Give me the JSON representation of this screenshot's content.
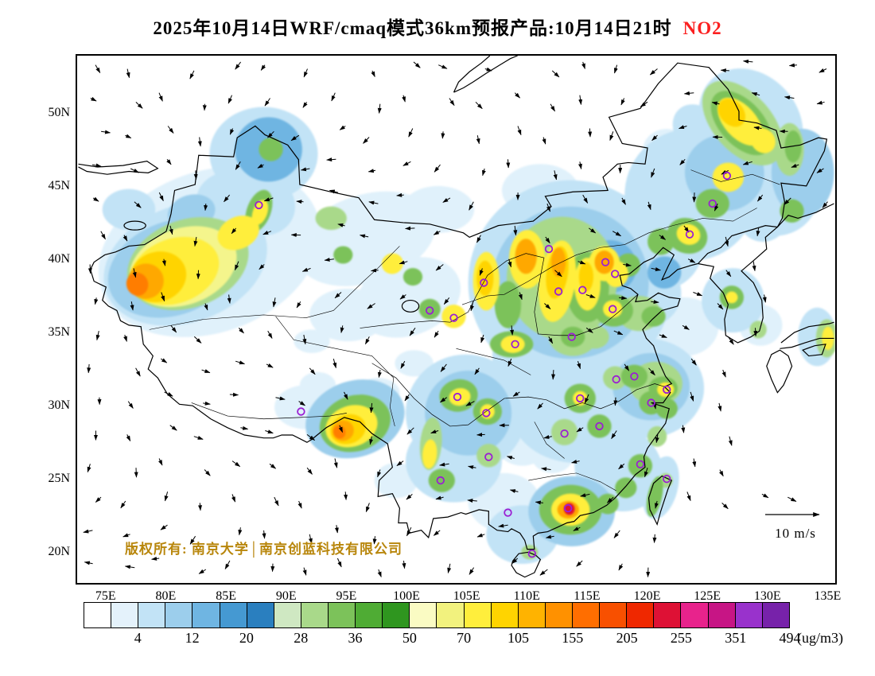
{
  "title": {
    "prefix": "2025年10月14日WRF/cmaq模式36km预报产品:10月14日21时",
    "species": "NO2",
    "species_color": "#FB2020"
  },
  "axes": {
    "lat_ticks": [
      [
        "50N",
        50
      ],
      [
        "45N",
        45
      ],
      [
        "40N",
        40
      ],
      [
        "35N",
        35
      ],
      [
        "30N",
        30
      ],
      [
        "25N",
        25
      ],
      [
        "20N",
        20
      ]
    ],
    "lon_ticks": [
      [
        "75E",
        75
      ],
      [
        "80E",
        80
      ],
      [
        "85E",
        85
      ],
      [
        "90E",
        90
      ],
      [
        "95E",
        95
      ],
      [
        "100E",
        100
      ],
      [
        "105E",
        105
      ],
      [
        "110E",
        110
      ],
      [
        "115E",
        115
      ],
      [
        "120E",
        120
      ],
      [
        "125E",
        125
      ],
      [
        "130E",
        130
      ],
      [
        "135E",
        135
      ]
    ]
  },
  "map": {
    "copyright": "版权所有: 南京大学│南京创蓝科技有限公司",
    "wind_scale": "10 m/s",
    "marker_color": "#9B1FD3",
    "cities": [
      [
        87.6,
        43.8
      ],
      [
        91.1,
        29.7
      ],
      [
        101.8,
        36.6
      ],
      [
        103.8,
        36.1
      ],
      [
        106.3,
        38.5
      ],
      [
        111.7,
        40.8
      ],
      [
        112.5,
        37.9
      ],
      [
        114.5,
        38.0
      ],
      [
        116.4,
        39.9
      ],
      [
        117.2,
        39.1
      ],
      [
        117.0,
        36.7
      ],
      [
        113.6,
        34.8
      ],
      [
        108.9,
        34.3
      ],
      [
        104.1,
        30.7
      ],
      [
        106.5,
        29.6
      ],
      [
        114.3,
        30.6
      ],
      [
        117.3,
        31.9
      ],
      [
        118.8,
        32.1
      ],
      [
        121.5,
        31.2
      ],
      [
        120.2,
        30.3
      ],
      [
        115.9,
        28.7
      ],
      [
        113.0,
        28.2
      ],
      [
        106.7,
        26.6
      ],
      [
        102.7,
        25.0
      ],
      [
        108.3,
        22.8
      ],
      [
        113.3,
        23.1
      ],
      [
        119.3,
        26.1
      ],
      [
        121.5,
        25.1
      ],
      [
        110.3,
        20.0
      ],
      [
        123.4,
        41.8
      ],
      [
        125.3,
        43.9
      ],
      [
        126.5,
        45.8
      ]
    ],
    "field_blobs": [
      [
        96.5,
        41.5,
        6.0,
        3.0,
        -18,
        "#E0F1FB"
      ],
      [
        100.0,
        37.5,
        4.5,
        2.6,
        -20,
        "#E0F1FB"
      ],
      [
        95.0,
        36.3,
        3.2,
        1.8,
        0,
        "#E0F1FB"
      ],
      [
        123.0,
        35.5,
        2.8,
        2.0,
        0,
        "#E0F1FB"
      ],
      [
        102.5,
        43.5,
        3.0,
        1.6,
        0,
        "#E0F1FB"
      ],
      [
        111.0,
        44.8,
        3.2,
        1.8,
        0,
        "#E0F1FB"
      ],
      [
        117.0,
        43.0,
        2.6,
        1.6,
        0,
        "#E0F1FB"
      ],
      [
        91.5,
        30.0,
        2.6,
        1.5,
        0,
        "#E0F1FB"
      ],
      [
        108.0,
        23.5,
        3.0,
        2.0,
        0,
        "#E0F1FB"
      ],
      [
        129.3,
        35.6,
        1.8,
        1.4,
        0,
        "#E0F1FB"
      ],
      [
        92.5,
        31.5,
        1.5,
        0.9,
        0,
        "#E0F1FB"
      ],
      [
        97.5,
        31.0,
        1.8,
        1.0,
        0,
        "#E0F1FB"
      ],
      [
        100.5,
        33.0,
        1.6,
        0.9,
        0,
        "#E0F1FB"
      ],
      [
        109.5,
        27.5,
        2.2,
        1.5,
        0,
        "#E0F1FB"
      ],
      [
        116.0,
        26.5,
        2.0,
        1.5,
        0,
        "#E0F1FB"
      ],
      [
        112.0,
        26.8,
        1.8,
        1.3,
        0,
        "#E0F1FB"
      ],
      [
        99.0,
        25.0,
        1.8,
        1.2,
        0,
        "#E0F1FB"
      ],
      [
        92.0,
        34.5,
        1.5,
        0.8,
        0,
        "#E0F1FB"
      ],
      [
        121.5,
        47.5,
        2.0,
        1.5,
        0,
        "#E0F1FB"
      ],
      [
        83.5,
        40.6,
        9.5,
        5.5,
        -20,
        "#E0F1FB"
      ],
      [
        81.5,
        39.8,
        7.0,
        4.0,
        -20,
        "#C2E3F6"
      ],
      [
        88.0,
        47.3,
        4.5,
        3.2,
        0,
        "#C2E3F6"
      ],
      [
        87.5,
        44.0,
        3.2,
        2.2,
        25,
        "#C2E3F6"
      ],
      [
        113.5,
        38.5,
        8.5,
        7.0,
        0,
        "#C2E3F6"
      ],
      [
        120.5,
        41.0,
        4.0,
        3.0,
        20,
        "#C2E3F6"
      ],
      [
        123.5,
        44.5,
        5.5,
        4.5,
        15,
        "#C2E3F6"
      ],
      [
        125.5,
        45.5,
        5.0,
        4.0,
        10,
        "#C2E3F6"
      ],
      [
        128.5,
        49.5,
        4.8,
        3.2,
        48,
        "#C2E3F6"
      ],
      [
        130.5,
        44.5,
        3.6,
        2.8,
        0,
        "#C2E3F6"
      ],
      [
        119.5,
        37.8,
        3.2,
        2.4,
        0,
        "#C2E3F6"
      ],
      [
        112.5,
        33.5,
        5.5,
        4.0,
        0,
        "#C2E3F6"
      ],
      [
        114.0,
        29.8,
        5.5,
        3.6,
        0,
        "#C2E3F6"
      ],
      [
        119.8,
        31.3,
        4.8,
        3.4,
        0,
        "#C2E3F6"
      ],
      [
        117.5,
        25.8,
        3.8,
        2.8,
        35,
        "#C2E3F6"
      ],
      [
        104.8,
        29.6,
        5.0,
        4.0,
        0,
        "#C2E3F6"
      ],
      [
        103.8,
        26.3,
        4.0,
        2.8,
        0,
        "#C2E3F6"
      ],
      [
        109.5,
        21.3,
        3.0,
        2.0,
        0,
        "#C2E3F6"
      ],
      [
        127.0,
        37.3,
        2.6,
        2.2,
        0,
        "#C2E3F6"
      ],
      [
        85.0,
        44.5,
        2.6,
        1.6,
        -15,
        "#C2E3F6"
      ],
      [
        76.8,
        43.5,
        2.2,
        1.4,
        0,
        "#C2E3F6"
      ],
      [
        134.0,
        34.8,
        1.6,
        2.0,
        0,
        "#C2E3F6"
      ],
      [
        121.0,
        24.5,
        1.4,
        2.2,
        15,
        "#C2E3F6"
      ],
      [
        107.5,
        31.8,
        2.0,
        1.4,
        0,
        "#C2E3F6"
      ],
      [
        110.5,
        30.5,
        1.8,
        1.2,
        0,
        "#C2E3F6"
      ],
      [
        124.0,
        49.0,
        2.2,
        1.5,
        48,
        "#C2E3F6"
      ],
      [
        129.5,
        42.5,
        1.8,
        1.2,
        0,
        "#C2E3F6"
      ],
      [
        80.5,
        39.5,
        5.6,
        3.2,
        -20,
        "#9CCEEC"
      ],
      [
        88.4,
        47.6,
        2.8,
        2.2,
        0,
        "#6FB5E2"
      ],
      [
        113.5,
        38.5,
        6.5,
        5.2,
        0,
        "#9CCEEC"
      ],
      [
        126.3,
        46.0,
        3.3,
        2.6,
        10,
        "#9CCEEC"
      ],
      [
        132.8,
        46.0,
        2.6,
        3.0,
        0,
        "#9CCEEC"
      ],
      [
        120.2,
        31.4,
        3.2,
        2.3,
        0,
        "#9CCEEC"
      ],
      [
        113.6,
        22.9,
        3.6,
        2.4,
        0,
        "#9CCEEC"
      ],
      [
        105.0,
        29.6,
        3.6,
        2.9,
        0,
        "#9CCEEC"
      ],
      [
        95.6,
        29.2,
        4.2,
        2.6,
        -18,
        "#9CCEEC"
      ],
      [
        82.0,
        43.3,
        2.0,
        1.2,
        -15,
        "#9CCEEC"
      ],
      [
        121.3,
        39.2,
        1.4,
        1.1,
        0,
        "#6FB5E2"
      ],
      [
        112.4,
        39.0,
        3.5,
        3.5,
        0,
        "#6FB5E2"
      ],
      [
        116.8,
        39.6,
        2.2,
        1.8,
        0,
        "#6FB5E2"
      ],
      [
        112.8,
        38.8,
        4.6,
        4.2,
        0,
        "#A9D98A"
      ],
      [
        81.7,
        39.8,
        5.2,
        3.0,
        -20,
        "#A9D98A"
      ],
      [
        119.2,
        36.4,
        1.8,
        1.2,
        0,
        "#A9D98A"
      ],
      [
        113.7,
        34.8,
        2.0,
        1.3,
        0,
        "#A9D98A"
      ],
      [
        115.5,
        34.8,
        1.2,
        0.8,
        0,
        "#A9D98A"
      ],
      [
        120.6,
        31.6,
        2.2,
        1.5,
        0,
        "#A9D98A"
      ],
      [
        113.0,
        28.3,
        1.1,
        0.9,
        0,
        "#A9D98A"
      ],
      [
        117.2,
        32.0,
        1.0,
        0.8,
        0,
        "#A9D98A"
      ],
      [
        106.7,
        26.7,
        1.0,
        0.8,
        0,
        "#A9D98A"
      ],
      [
        101.9,
        27.5,
        0.9,
        1.8,
        5,
        "#A9D98A"
      ],
      [
        127.8,
        49.4,
        4.2,
        2.0,
        48,
        "#A9D98A"
      ],
      [
        131.7,
        47.6,
        1.2,
        1.8,
        0,
        "#A9D98A"
      ],
      [
        129.1,
        35.3,
        0.7,
        0.6,
        0,
        "#A9D98A"
      ],
      [
        134.8,
        34.7,
        0.9,
        1.3,
        0,
        "#A9D98A"
      ],
      [
        120.7,
        28.0,
        0.8,
        0.7,
        0,
        "#A9D98A"
      ],
      [
        121.4,
        25.0,
        0.6,
        0.5,
        0,
        "#A9D98A"
      ],
      [
        93.6,
        42.9,
        1.3,
        0.8,
        0,
        "#A9D98A"
      ],
      [
        110.1,
        20.1,
        0.7,
        0.5,
        0,
        "#A9D98A"
      ],
      [
        95.6,
        28.9,
        3.0,
        1.9,
        -18,
        "#7CC25A"
      ],
      [
        113.5,
        23.0,
        2.6,
        1.7,
        0,
        "#7CC25A"
      ],
      [
        87.6,
        43.4,
        1.0,
        1.5,
        20,
        "#7CC25A"
      ],
      [
        88.6,
        47.6,
        1.0,
        0.8,
        0,
        "#7CC25A"
      ],
      [
        94.6,
        40.4,
        0.8,
        0.6,
        0,
        "#7CC25A"
      ],
      [
        100.4,
        38.9,
        0.8,
        0.6,
        0,
        "#7CC25A"
      ],
      [
        101.8,
        36.7,
        0.9,
        0.7,
        0,
        "#7CC25A"
      ],
      [
        108.3,
        37.0,
        1.1,
        1.6,
        0,
        "#7CC25A"
      ],
      [
        114.9,
        38.2,
        1.8,
        2.4,
        0,
        "#7CC25A"
      ],
      [
        123.2,
        41.7,
        1.7,
        1.2,
        20,
        "#7CC25A"
      ],
      [
        121.0,
        41.3,
        1.1,
        0.9,
        20,
        "#7CC25A"
      ],
      [
        117.1,
        36.6,
        1.6,
        1.1,
        0,
        "#7CC25A"
      ],
      [
        120.4,
        36.2,
        1.0,
        0.7,
        0,
        "#7CC25A"
      ],
      [
        113.7,
        34.8,
        1.0,
        0.7,
        0,
        "#7CC25A"
      ],
      [
        118.8,
        32.1,
        1.1,
        0.8,
        0,
        "#7CC25A"
      ],
      [
        121.2,
        31.3,
        1.2,
        0.8,
        0,
        "#7CC25A"
      ],
      [
        120.2,
        30.3,
        1.0,
        0.8,
        0,
        "#7CC25A"
      ],
      [
        114.3,
        30.6,
        1.3,
        1.0,
        0,
        "#7CC25A"
      ],
      [
        115.9,
        28.7,
        1.0,
        0.8,
        0,
        "#7CC25A"
      ],
      [
        104.2,
        30.8,
        1.6,
        1.1,
        -10,
        "#7CC25A"
      ],
      [
        106.6,
        29.7,
        1.2,
        0.9,
        0,
        "#7CC25A"
      ],
      [
        102.8,
        25.0,
        1.1,
        0.8,
        0,
        "#7CC25A"
      ],
      [
        116.6,
        23.4,
        0.9,
        0.7,
        0,
        "#7CC25A"
      ],
      [
        118.1,
        24.5,
        0.9,
        0.7,
        0,
        "#7CC25A"
      ],
      [
        119.3,
        26.0,
        1.0,
        0.8,
        0,
        "#7CC25A"
      ],
      [
        121.5,
        29.9,
        0.9,
        0.7,
        0,
        "#7CC25A"
      ],
      [
        120.5,
        23.9,
        0.6,
        1.4,
        12,
        "#7CC25A"
      ],
      [
        125.3,
        43.9,
        1.4,
        1.0,
        0,
        "#7CC25A"
      ],
      [
        127.7,
        49.4,
        3.2,
        1.5,
        48,
        "#7CC25A"
      ],
      [
        132.0,
        47.8,
        0.7,
        1.1,
        0,
        "#7CC25A"
      ],
      [
        131.9,
        43.4,
        1.0,
        0.8,
        0,
        "#7CC25A"
      ],
      [
        126.9,
        37.5,
        1.0,
        0.8,
        0,
        "#7CC25A"
      ],
      [
        108.6,
        34.3,
        1.8,
        0.9,
        0,
        "#7CC25A"
      ],
      [
        118.3,
        39.7,
        1.0,
        0.8,
        0,
        "#7CC25A"
      ],
      [
        81.3,
        39.6,
        4.6,
        2.6,
        -20,
        "#F4F58C"
      ],
      [
        80.6,
        39.3,
        3.8,
        2.2,
        -20,
        "#FFEE3C"
      ],
      [
        85.9,
        41.9,
        1.8,
        1.1,
        -25,
        "#FFEE3C"
      ],
      [
        87.7,
        43.3,
        0.6,
        0.9,
        20,
        "#FFEE3C"
      ],
      [
        98.7,
        39.8,
        0.9,
        0.7,
        -20,
        "#FFEE3C"
      ],
      [
        103.8,
        36.2,
        1.0,
        0.8,
        0,
        "#FFEE3C"
      ],
      [
        109.9,
        40.1,
        1.5,
        2.0,
        0,
        "#FFEE3C"
      ],
      [
        106.5,
        38.6,
        1.1,
        2.0,
        0,
        "#FFEE3C"
      ],
      [
        112.4,
        38.6,
        1.5,
        2.8,
        8,
        "#FFEE3C"
      ],
      [
        114.9,
        38.4,
        1.1,
        1.8,
        0,
        "#FFEE3C"
      ],
      [
        116.3,
        39.8,
        1.3,
        1.2,
        0,
        "#FFEE3C"
      ],
      [
        117.3,
        39.1,
        1.0,
        0.9,
        0,
        "#FFEE3C"
      ],
      [
        123.3,
        41.8,
        1.0,
        0.7,
        20,
        "#FFEE3C"
      ],
      [
        117.0,
        36.7,
        0.8,
        0.6,
        0,
        "#FFEE3C"
      ],
      [
        121.4,
        31.2,
        0.7,
        0.5,
        0,
        "#FFEE3C"
      ],
      [
        114.3,
        30.6,
        0.6,
        0.5,
        0,
        "#FFEE3C"
      ],
      [
        104.3,
        30.7,
        0.9,
        0.6,
        -10,
        "#FFEE3C"
      ],
      [
        106.6,
        29.7,
        0.6,
        0.5,
        0,
        "#FFEE3C"
      ],
      [
        101.8,
        26.8,
        0.6,
        1.0,
        5,
        "#FFEE3C"
      ],
      [
        95.3,
        28.7,
        2.2,
        1.4,
        -18,
        "#FFEE3C"
      ],
      [
        113.5,
        23.0,
        1.6,
        1.1,
        0,
        "#FFEE3C"
      ],
      [
        126.6,
        45.7,
        1.3,
        1.0,
        0,
        "#FFEE3C"
      ],
      [
        127.6,
        49.5,
        2.4,
        1.1,
        48,
        "#FFEE3C"
      ],
      [
        129.5,
        48.2,
        1.1,
        0.8,
        48,
        "#FFEE3C"
      ],
      [
        126.9,
        37.5,
        0.5,
        0.4,
        0,
        "#FFEE3C"
      ],
      [
        134.9,
        34.7,
        0.5,
        0.8,
        0,
        "#FFEE3C"
      ],
      [
        108.7,
        34.3,
        1.0,
        0.6,
        0,
        "#FFEE3C"
      ],
      [
        79.2,
        38.9,
        2.4,
        1.7,
        -20,
        "#FFD400"
      ],
      [
        112.4,
        39.2,
        0.9,
        1.8,
        8,
        "#FFD400"
      ],
      [
        114.8,
        38.9,
        0.6,
        1.0,
        0,
        "#FFD400"
      ],
      [
        106.4,
        38.8,
        0.7,
        1.2,
        0,
        "#FFD400"
      ],
      [
        95.0,
        28.5,
        1.5,
        1.0,
        -18,
        "#FFD400"
      ],
      [
        126.9,
        50.1,
        1.3,
        0.8,
        48,
        "#FFD400"
      ],
      [
        78.2,
        38.6,
        1.5,
        1.2,
        -20,
        "#FFA800"
      ],
      [
        77.5,
        38.4,
        0.9,
        0.8,
        -20,
        "#FF7D00"
      ],
      [
        109.8,
        40.3,
        0.9,
        1.2,
        0,
        "#FFA800"
      ],
      [
        112.5,
        39.9,
        0.6,
        1.0,
        0,
        "#FFA800"
      ],
      [
        116.3,
        39.9,
        0.8,
        0.8,
        0,
        "#FFA800"
      ],
      [
        94.6,
        28.4,
        0.9,
        0.7,
        -18,
        "#FFA800"
      ],
      [
        94.3,
        28.3,
        0.5,
        0.45,
        -18,
        "#FF7D00"
      ],
      [
        113.3,
        23.0,
        0.9,
        0.6,
        0,
        "#FFA800"
      ],
      [
        113.4,
        23.05,
        0.45,
        0.4,
        0,
        "#DE1135"
      ]
    ]
  },
  "colorbar": {
    "unit": "(ug/m3)",
    "labels": [
      "4",
      "12",
      "20",
      "28",
      "36",
      "50",
      "70",
      "105",
      "155",
      "205",
      "255",
      "351",
      "494"
    ],
    "colors": [
      "#FFFFFF",
      "#E4F2FB",
      "#C2E3F6",
      "#9CCEEC",
      "#6FB5E2",
      "#4599D2",
      "#2A7FBF",
      "#CFE8C2",
      "#A9D98A",
      "#7CC25A",
      "#4FAC34",
      "#2F961F",
      "#FAFBC3",
      "#F2F27E",
      "#FFEE3C",
      "#FFD400",
      "#FFB300",
      "#FF9100",
      "#FF6E00",
      "#F85000",
      "#EF2800",
      "#DE1135",
      "#E8238C",
      "#C71585",
      "#9932CC",
      "#7722AA"
    ]
  }
}
